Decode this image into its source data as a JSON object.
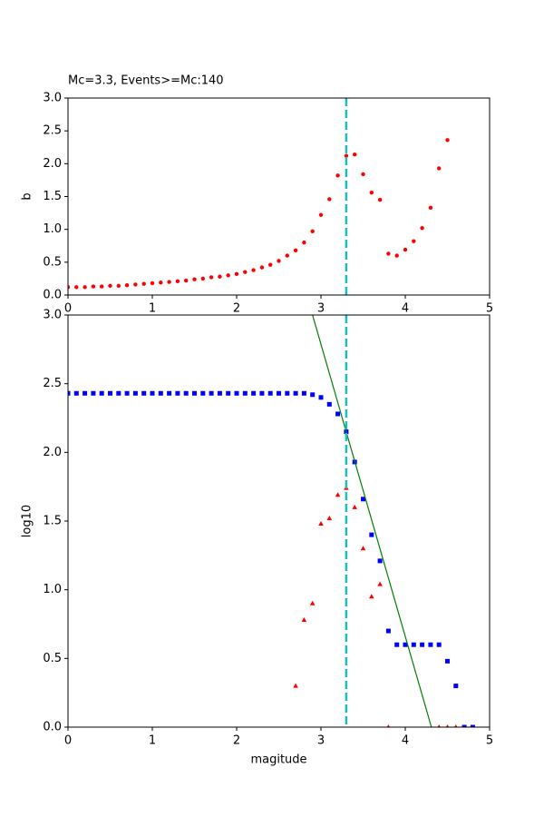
{
  "chart_data": [
    {
      "type": "scatter",
      "title": "Mc=3.3, Events>=Mc:140",
      "ylabel": "b",
      "xlim": [
        0,
        5
      ],
      "ylim": [
        0,
        3
      ],
      "xticks": [
        0,
        1,
        2,
        3,
        4,
        5
      ],
      "yticks": [
        {
          "value": 0,
          "label": "0.0"
        },
        {
          "value": 0.5,
          "label": "0.5"
        },
        {
          "value": 1,
          "label": "1.0"
        },
        {
          "value": 1.5,
          "label": "1.5"
        },
        {
          "value": 2,
          "label": "2.0"
        },
        {
          "value": 2.5,
          "label": "2.5"
        },
        {
          "value": 3,
          "label": "3.0"
        }
      ],
      "vline": {
        "value": 3.3,
        "color": "#17bfbf"
      },
      "series": [
        {
          "marker": "circle",
          "color": "#ff0000",
          "x": [
            0,
            0.1,
            0.2,
            0.3,
            0.4,
            0.5,
            0.6,
            0.7,
            0.8,
            0.9,
            1.0,
            1.1,
            1.2,
            1.3,
            1.4,
            1.5,
            1.6,
            1.7,
            1.8,
            1.9,
            2.0,
            2.1,
            2.2,
            2.3,
            2.4,
            2.5,
            2.6,
            2.7,
            2.8,
            2.9,
            3.0,
            3.1,
            3.2,
            3.3,
            3.4,
            3.5,
            3.6,
            3.7,
            3.8,
            3.9,
            4.0,
            4.1,
            4.2,
            4.3,
            4.4,
            4.5
          ],
          "values": [
            0.12,
            0.12,
            0.12,
            0.13,
            0.13,
            0.14,
            0.14,
            0.15,
            0.16,
            0.17,
            0.18,
            0.19,
            0.2,
            0.21,
            0.22,
            0.24,
            0.25,
            0.27,
            0.28,
            0.3,
            0.32,
            0.35,
            0.38,
            0.42,
            0.46,
            0.52,
            0.6,
            0.68,
            0.8,
            0.97,
            1.22,
            1.46,
            1.82,
            2.12,
            2.14,
            1.84,
            1.56,
            1.45,
            0.63,
            0.6,
            0.69,
            0.82,
            1.02,
            1.33,
            1.93,
            2.36
          ]
        }
      ]
    },
    {
      "type": "scatter",
      "ylabel": "log10",
      "xlabel": "magitude",
      "xlim": [
        0,
        5
      ],
      "ylim": [
        0,
        3
      ],
      "xticks": [
        0,
        1,
        2,
        3,
        4,
        5
      ],
      "yticks": [
        {
          "value": 0,
          "label": "0.0"
        },
        {
          "value": 0.5,
          "label": "0.5"
        },
        {
          "value": 1,
          "label": "1.0"
        },
        {
          "value": 1.5,
          "label": "1.5"
        },
        {
          "value": 2,
          "label": "2.0"
        },
        {
          "value": 2.5,
          "label": "2.5"
        },
        {
          "value": 3,
          "label": "3.0"
        }
      ],
      "vline": {
        "value": 3.3,
        "color": "#17bfbf"
      },
      "series": [
        {
          "marker": "square",
          "color": "#0000ff",
          "x": [
            0,
            0.1,
            0.2,
            0.3,
            0.4,
            0.5,
            0.6,
            0.7,
            0.8,
            0.9,
            1.0,
            1.1,
            1.2,
            1.3,
            1.4,
            1.5,
            1.6,
            1.7,
            1.8,
            1.9,
            2.0,
            2.1,
            2.2,
            2.3,
            2.4,
            2.5,
            2.6,
            2.7,
            2.8,
            2.9,
            3.0,
            3.1,
            3.2,
            3.3,
            3.4,
            3.5,
            3.6,
            3.7,
            3.8,
            3.9,
            4.0,
            4.1,
            4.2,
            4.3,
            4.4,
            4.5,
            4.6,
            4.7,
            4.8
          ],
          "values": [
            2.43,
            2.43,
            2.43,
            2.43,
            2.43,
            2.43,
            2.43,
            2.43,
            2.43,
            2.43,
            2.43,
            2.43,
            2.43,
            2.43,
            2.43,
            2.43,
            2.43,
            2.43,
            2.43,
            2.43,
            2.43,
            2.43,
            2.43,
            2.43,
            2.43,
            2.43,
            2.43,
            2.43,
            2.43,
            2.42,
            2.4,
            2.35,
            2.28,
            2.15,
            1.93,
            1.66,
            1.4,
            1.21,
            0.7,
            0.6,
            0.6,
            0.6,
            0.6,
            0.6,
            0.6,
            0.48,
            0.3,
            0,
            0
          ]
        },
        {
          "marker": "triangle",
          "color": "#ff0000",
          "x": [
            2.7,
            2.8,
            2.9,
            3.0,
            3.1,
            3.2,
            3.3,
            3.4,
            3.5,
            3.6,
            3.7,
            3.8,
            4.4,
            4.5,
            4.6
          ],
          "values": [
            0.3,
            0.78,
            0.9,
            1.48,
            1.52,
            1.69,
            1.74,
            1.6,
            1.3,
            0.95,
            1.04,
            0,
            0,
            0,
            0
          ]
        },
        {
          "marker": "line",
          "color": "#008000",
          "x": [
            2.9,
            4.31
          ],
          "values": [
            3.0,
            0
          ]
        }
      ]
    }
  ]
}
